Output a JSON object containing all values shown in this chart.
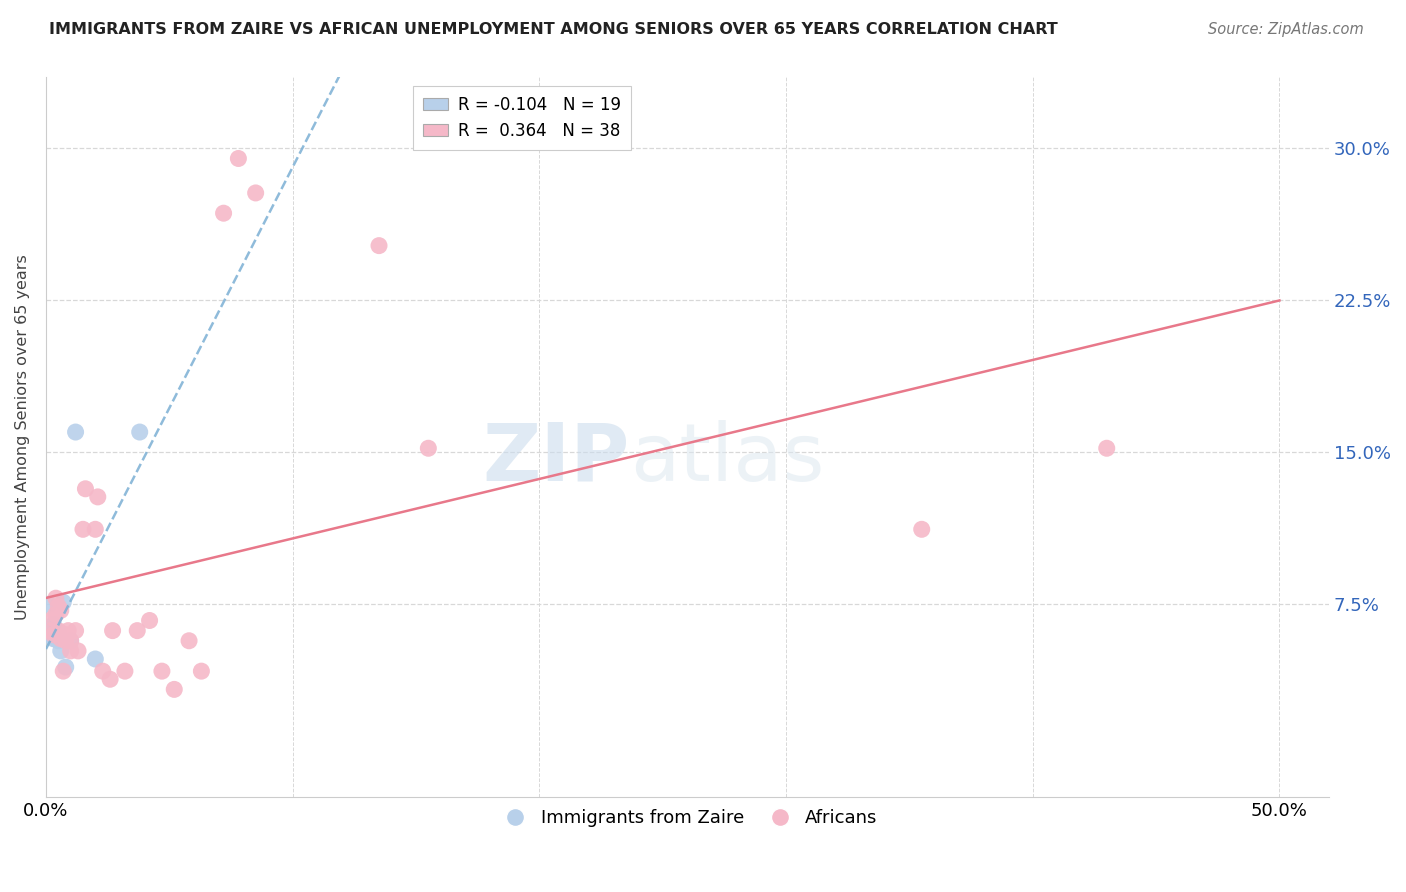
{
  "title": "IMMIGRANTS FROM ZAIRE VS AFRICAN UNEMPLOYMENT AMONG SENIORS OVER 65 YEARS CORRELATION CHART",
  "source": "Source: ZipAtlas.com",
  "ylabel": "Unemployment Among Seniors over 65 years",
  "xlim": [
    0.0,
    0.52
  ],
  "ylim": [
    -0.02,
    0.335
  ],
  "yticks": [
    0.075,
    0.15,
    0.225,
    0.3
  ],
  "ytick_labels": [
    "7.5%",
    "15.0%",
    "22.5%",
    "30.0%"
  ],
  "xticks": [
    0.0,
    0.1,
    0.2,
    0.3,
    0.4,
    0.5
  ],
  "xtick_labels": [
    "0.0%",
    "",
    "",
    "",
    "",
    "50.0%"
  ],
  "blue_R": -0.104,
  "blue_N": 19,
  "pink_R": 0.364,
  "pink_N": 38,
  "blue_color": "#b8d0ea",
  "pink_color": "#f5b8c8",
  "blue_line_color": "#7bafd4",
  "pink_line_color": "#e8788a",
  "blue_scatter": [
    [
      0.001,
      0.062
    ],
    [
      0.002,
      0.063
    ],
    [
      0.002,
      0.06
    ],
    [
      0.003,
      0.058
    ],
    [
      0.003,
      0.061
    ],
    [
      0.003,
      0.065
    ],
    [
      0.004,
      0.06
    ],
    [
      0.004,
      0.058
    ],
    [
      0.005,
      0.061
    ],
    [
      0.005,
      0.057
    ],
    [
      0.005,
      0.059
    ],
    [
      0.006,
      0.052
    ],
    [
      0.007,
      0.076
    ],
    [
      0.008,
      0.044
    ],
    [
      0.01,
      0.057
    ],
    [
      0.012,
      0.16
    ],
    [
      0.02,
      0.048
    ],
    [
      0.038,
      0.16
    ],
    [
      0.001,
      0.075
    ]
  ],
  "pink_scatter": [
    [
      0.002,
      0.062
    ],
    [
      0.003,
      0.06
    ],
    [
      0.003,
      0.068
    ],
    [
      0.004,
      0.078
    ],
    [
      0.004,
      0.07
    ],
    [
      0.005,
      0.062
    ],
    [
      0.005,
      0.074
    ],
    [
      0.006,
      0.072
    ],
    [
      0.006,
      0.058
    ],
    [
      0.007,
      0.042
    ],
    [
      0.008,
      0.057
    ],
    [
      0.008,
      0.06
    ],
    [
      0.009,
      0.062
    ],
    [
      0.01,
      0.057
    ],
    [
      0.01,
      0.052
    ],
    [
      0.012,
      0.062
    ],
    [
      0.013,
      0.052
    ],
    [
      0.015,
      0.112
    ],
    [
      0.016,
      0.132
    ],
    [
      0.02,
      0.112
    ],
    [
      0.021,
      0.128
    ],
    [
      0.023,
      0.042
    ],
    [
      0.026,
      0.038
    ],
    [
      0.027,
      0.062
    ],
    [
      0.032,
      0.042
    ],
    [
      0.037,
      0.062
    ],
    [
      0.042,
      0.067
    ],
    [
      0.047,
      0.042
    ],
    [
      0.052,
      0.033
    ],
    [
      0.058,
      0.057
    ],
    [
      0.063,
      0.042
    ],
    [
      0.072,
      0.268
    ],
    [
      0.078,
      0.295
    ],
    [
      0.085,
      0.278
    ],
    [
      0.135,
      0.252
    ],
    [
      0.155,
      0.152
    ],
    [
      0.355,
      0.112
    ],
    [
      0.43,
      0.152
    ]
  ],
  "watermark_zip": "ZIP",
  "watermark_atlas": "atlas",
  "background_color": "#ffffff",
  "grid_color": "#d8d8d8"
}
